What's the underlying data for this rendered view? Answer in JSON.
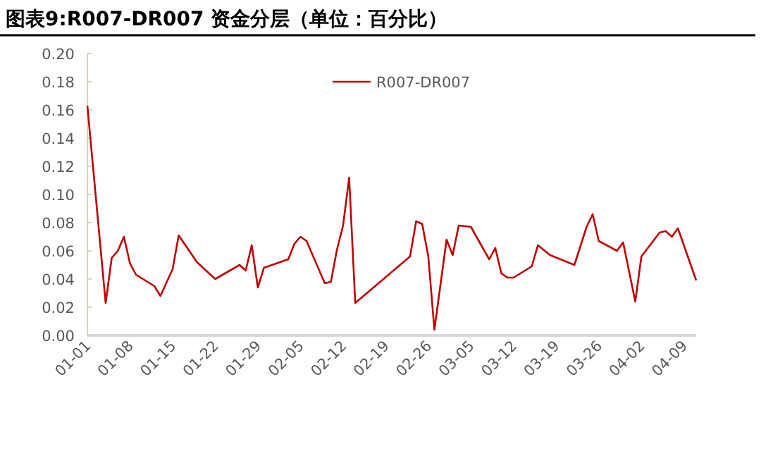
{
  "chart_data": {
    "type": "line",
    "title": "图表9:R007-DR007 资金分层（单位：百分比）",
    "x": [
      "--01-01",
      "--01-04",
      "--01-05",
      "--01-06",
      "--01-07",
      "--01-08",
      "--01-09",
      "--01-12",
      "--01-13",
      "--01-15",
      "--01-16",
      "--01-19",
      "--01-22",
      "--01-26",
      "--01-27",
      "--01-28",
      "--01-29",
      "--01-30",
      "--02-03",
      "--02-04",
      "--02-05",
      "--02-06",
      "--02-09",
      "--02-10",
      "--02-11",
      "--02-12",
      "--02-13",
      "--02-14",
      "--02-23",
      "--02-24",
      "--02-25",
      "--02-26",
      "--02-27",
      "--02-28",
      "--03-01",
      "--03-02",
      "--03-03",
      "--03-05",
      "--03-08",
      "--03-09",
      "--03-10",
      "--03-11",
      "--03-12",
      "--03-15",
      "--03-16",
      "--03-18",
      "--03-22",
      "--03-24",
      "--03-25",
      "--03-26",
      "--03-29",
      "--03-30",
      "--04-01",
      "--04-02",
      "--04-05",
      "--04-06",
      "--04-07",
      "--04-08",
      "--04-11"
    ],
    "series": [
      {
        "name": "R007-DR007",
        "color": "#c00000",
        "values": [
          0.163,
          0.023,
          0.055,
          0.06,
          0.07,
          0.051,
          0.043,
          0.035,
          0.028,
          0.047,
          0.071,
          0.052,
          0.04,
          0.05,
          0.046,
          0.064,
          0.034,
          0.048,
          0.054,
          0.065,
          0.07,
          0.067,
          0.037,
          0.038,
          0.061,
          0.078,
          0.112,
          0.023,
          0.056,
          0.081,
          0.079,
          0.056,
          0.004,
          0.036,
          0.068,
          0.057,
          0.078,
          0.077,
          0.054,
          0.062,
          0.044,
          0.041,
          0.041,
          0.049,
          0.064,
          0.057,
          0.05,
          0.077,
          0.086,
          0.067,
          0.06,
          0.066,
          0.024,
          0.056,
          0.073,
          0.074,
          0.07,
          0.076,
          0.039
        ]
      }
    ],
    "xlim": [
      "--01-01",
      "--04-11"
    ],
    "xticks": [
      {
        "value": "--01-01",
        "label": "01-01"
      },
      {
        "value": "--01-08",
        "label": "01-08"
      },
      {
        "value": "--01-15",
        "label": "01-15"
      },
      {
        "value": "--01-22",
        "label": "01-22"
      },
      {
        "value": "--01-29",
        "label": "01-29"
      },
      {
        "value": "--02-05",
        "label": "02-05"
      },
      {
        "value": "--02-12",
        "label": "02-12"
      },
      {
        "value": "--02-19",
        "label": "02-19"
      },
      {
        "value": "--02-26",
        "label": "02-26"
      },
      {
        "value": "--03-05",
        "label": "03-05"
      },
      {
        "value": "--03-12",
        "label": "03-12"
      },
      {
        "value": "--03-19",
        "label": "03-19"
      },
      {
        "value": "--03-26",
        "label": "03-26"
      },
      {
        "value": "--04-02",
        "label": "04-02"
      },
      {
        "value": "--04-09",
        "label": "04-09"
      }
    ],
    "ylim": [
      0,
      0.2
    ],
    "yticks": [
      {
        "value": 0,
        "label": "0.00"
      },
      {
        "value": 0.02,
        "label": "0.02"
      },
      {
        "value": 0.04,
        "label": "0.04"
      },
      {
        "value": 0.06,
        "label": "0.06"
      },
      {
        "value": 0.08,
        "label": "0.08"
      },
      {
        "value": 0.1,
        "label": "0.10"
      },
      {
        "value": 0.12,
        "label": "0.12"
      },
      {
        "value": 0.14,
        "label": "0.14"
      },
      {
        "value": 0.16,
        "label": "0.16"
      },
      {
        "value": 0.18,
        "label": "0.18"
      },
      {
        "value": 0.2,
        "label": "0.20"
      }
    ],
    "legend": "top"
  }
}
